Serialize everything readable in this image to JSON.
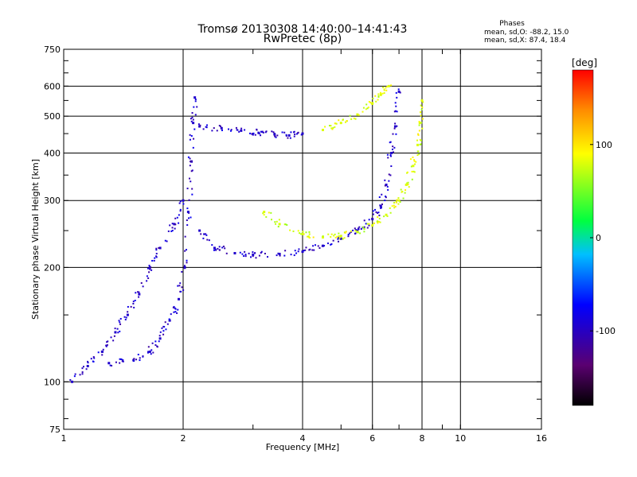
{
  "chart_data": {
    "type": "scatter",
    "title": "Tromsø 20130308 14:40:00–14:41:43",
    "subtitle": "RwPretec (8p)",
    "xlabel": "Frequency [MHz]",
    "ylabel": "Stationary phase Virtual Height [km]",
    "x_scale": "log",
    "y_scale": "log",
    "xlim": [
      1,
      16
    ],
    "ylim": [
      75,
      750
    ],
    "x_ticks": [
      1,
      2,
      4,
      6,
      8,
      10,
      16
    ],
    "x_tick_labels": [
      "1",
      "2",
      "4",
      "6",
      "8",
      "10",
      "16"
    ],
    "y_ticks": [
      75,
      100,
      200,
      300,
      400,
      500,
      600,
      750
    ],
    "y_tick_labels": [
      "75",
      "100",
      "200",
      "300",
      "400",
      "500",
      "600",
      "750"
    ],
    "grid": true,
    "stats_title": "Phases",
    "stats_lines": [
      "mean, sd,O: -88.2, 15.0",
      "mean, sd,X:  87.4, 18.4"
    ],
    "colorbar": {
      "label": "deg",
      "range": [
        -180,
        180
      ],
      "ticks": [
        100,
        0,
        -100
      ],
      "tick_labels": [
        "100",
        "0",
        "-100"
      ]
    },
    "series": [
      {
        "name": "O",
        "color_value": -95,
        "traces": [
          {
            "points": [
              [
                1.3,
                112
              ],
              [
                1.5,
                114
              ],
              [
                1.65,
                120
              ],
              [
                1.75,
                130
              ],
              [
                1.85,
                145
              ],
              [
                1.95,
                165
              ],
              [
                2.02,
                200
              ],
              [
                2.06,
                280
              ],
              [
                2.1,
                380
              ],
              [
                2.12,
                480
              ],
              [
                2.14,
                560
              ]
            ]
          },
          {
            "points": [
              [
                2.2,
                250
              ],
              [
                2.4,
                225
              ],
              [
                2.7,
                218
              ],
              [
                3.0,
                216
              ],
              [
                3.5,
                217
              ],
              [
                4.0,
                220
              ],
              [
                4.5,
                228
              ],
              [
                5.0,
                238
              ],
              [
                5.5,
                250
              ],
              [
                6.0,
                268
              ],
              [
                6.3,
                290
              ],
              [
                6.5,
                330
              ],
              [
                6.7,
                400
              ],
              [
                6.85,
                470
              ],
              [
                7.0,
                580
              ]
            ]
          },
          {
            "points": [
              [
                2.2,
                470
              ],
              [
                2.5,
                465
              ],
              [
                2.8,
                458
              ],
              [
                3.1,
                452
              ],
              [
                3.4,
                448
              ],
              [
                3.7,
                445
              ],
              [
                4.0,
                450
              ]
            ]
          },
          {
            "points": [
              [
                1.05,
                100
              ],
              [
                1.15,
                110
              ],
              [
                1.25,
                120
              ],
              [
                1.35,
                135
              ],
              [
                1.45,
                150
              ],
              [
                1.55,
                170
              ],
              [
                1.65,
                200
              ],
              [
                1.75,
                225
              ],
              [
                1.9,
                260
              ],
              [
                2.0,
                300
              ]
            ]
          }
        ]
      },
      {
        "name": "X",
        "color_value": 80,
        "traces": [
          {
            "points": [
              [
                3.2,
                280
              ],
              [
                3.5,
                260
              ],
              [
                4.0,
                245
              ],
              [
                4.5,
                240
              ],
              [
                5.0,
                242
              ],
              [
                5.5,
                248
              ],
              [
                6.0,
                258
              ],
              [
                6.5,
                275
              ],
              [
                7.0,
                300
              ],
              [
                7.3,
                330
              ],
              [
                7.6,
                370
              ],
              [
                7.8,
                420
              ],
              [
                7.9,
                480
              ],
              [
                8.0,
                550
              ]
            ]
          },
          {
            "points": [
              [
                4.5,
                460
              ],
              [
                5.0,
                480
              ],
              [
                5.5,
                505
              ],
              [
                6.0,
                540
              ],
              [
                6.3,
                570
              ],
              [
                6.6,
                600
              ]
            ]
          }
        ]
      }
    ]
  }
}
